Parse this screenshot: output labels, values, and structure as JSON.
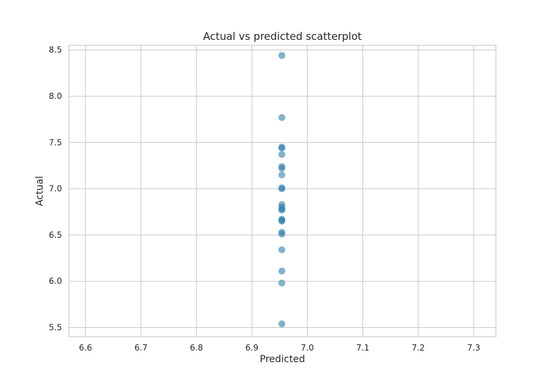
{
  "chart_data": {
    "type": "scatter",
    "title": "Actual vs predicted scatterplot",
    "xlabel": "Predicted",
    "ylabel": "Actual",
    "xlim": [
      6.57,
      7.34
    ],
    "ylim": [
      5.4,
      8.55
    ],
    "xticks": [
      "6.6",
      "6.7",
      "6.8",
      "6.9",
      "7.0",
      "7.1",
      "7.2",
      "7.3"
    ],
    "yticks": [
      "5.5",
      "6.0",
      "6.5",
      "7.0",
      "7.5",
      "8.0",
      "8.5"
    ],
    "grid": true,
    "point_color": "#2f7fae",
    "frame_color": "#cccccc",
    "grid_color": "#cccccc",
    "points": [
      {
        "x": 6.954,
        "y": 8.44
      },
      {
        "x": 6.954,
        "y": 7.77
      },
      {
        "x": 6.954,
        "y": 7.45
      },
      {
        "x": 6.954,
        "y": 7.44
      },
      {
        "x": 6.954,
        "y": 7.37
      },
      {
        "x": 6.954,
        "y": 7.24
      },
      {
        "x": 6.954,
        "y": 7.22
      },
      {
        "x": 6.954,
        "y": 7.15
      },
      {
        "x": 6.954,
        "y": 7.01
      },
      {
        "x": 6.954,
        "y": 7.0
      },
      {
        "x": 6.954,
        "y": 6.83
      },
      {
        "x": 6.954,
        "y": 6.8
      },
      {
        "x": 6.954,
        "y": 6.78
      },
      {
        "x": 6.954,
        "y": 6.77
      },
      {
        "x": 6.954,
        "y": 6.67
      },
      {
        "x": 6.954,
        "y": 6.66
      },
      {
        "x": 6.954,
        "y": 6.65
      },
      {
        "x": 6.954,
        "y": 6.53
      },
      {
        "x": 6.954,
        "y": 6.51
      },
      {
        "x": 6.954,
        "y": 6.34
      },
      {
        "x": 6.954,
        "y": 6.11
      },
      {
        "x": 6.954,
        "y": 5.98
      },
      {
        "x": 6.954,
        "y": 5.54
      }
    ]
  }
}
